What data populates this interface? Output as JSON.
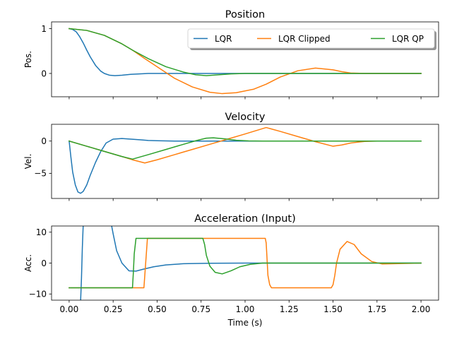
{
  "chart_data": [
    {
      "type": "line",
      "title": "Position",
      "ylabel": "Pos.",
      "xlabel": "",
      "xlim": [
        -0.1,
        2.1
      ],
      "ylim": [
        -0.52,
        1.15
      ],
      "yticks": [
        0,
        1
      ],
      "xticks": [
        0.0,
        0.25,
        0.5,
        0.75,
        1.0,
        1.25,
        1.5,
        1.75,
        2.0
      ],
      "show_xtick_labels": false,
      "grid": false,
      "legend": {
        "placement": "top-right",
        "ncol": 3,
        "entries": [
          "LQR",
          "LQR Clipped",
          "LQR QP"
        ]
      },
      "series": [
        {
          "name": "LQR",
          "color": "#1f77b4",
          "x": [
            0,
            0.02,
            0.04,
            0.06,
            0.08,
            0.1,
            0.12,
            0.15,
            0.18,
            0.2,
            0.23,
            0.26,
            0.3,
            0.35,
            0.4,
            0.45,
            0.5,
            0.6,
            0.8,
            1.0,
            1.5,
            2.0
          ],
          "y": [
            1.0,
            0.98,
            0.93,
            0.82,
            0.68,
            0.52,
            0.37,
            0.18,
            0.05,
            0.0,
            -0.04,
            -0.05,
            -0.04,
            -0.02,
            -0.01,
            0.0,
            0.0,
            0.0,
            0.0,
            0.0,
            0.0,
            0.0
          ]
        },
        {
          "name": "LQR Clipped",
          "color": "#ff7f0e",
          "x": [
            0,
            0.1,
            0.2,
            0.3,
            0.36,
            0.43,
            0.5,
            0.6,
            0.7,
            0.8,
            0.87,
            0.95,
            1.05,
            1.12,
            1.2,
            1.3,
            1.4,
            1.5,
            1.55,
            1.6,
            1.68,
            1.75,
            2.0
          ],
          "y": [
            1.0,
            0.96,
            0.85,
            0.66,
            0.52,
            0.33,
            0.15,
            -0.11,
            -0.3,
            -0.42,
            -0.45,
            -0.43,
            -0.35,
            -0.24,
            -0.08,
            0.06,
            0.12,
            0.08,
            0.04,
            0.01,
            0.0,
            0.0,
            0.0
          ]
        },
        {
          "name": "LQR QP",
          "color": "#2ca02c",
          "x": [
            0,
            0.1,
            0.2,
            0.3,
            0.36,
            0.45,
            0.55,
            0.65,
            0.72,
            0.78,
            0.85,
            0.92,
            1.0,
            1.1,
            1.3,
            1.5,
            2.0
          ],
          "y": [
            1.0,
            0.96,
            0.85,
            0.66,
            0.52,
            0.33,
            0.15,
            0.03,
            -0.03,
            -0.05,
            -0.03,
            -0.01,
            0.0,
            0.0,
            0.0,
            0.0,
            0.0
          ]
        }
      ]
    },
    {
      "type": "line",
      "title": "Velocity",
      "ylabel": "Vel.",
      "xlabel": "",
      "xlim": [
        -0.1,
        2.1
      ],
      "ylim": [
        -8.9,
        2.6
      ],
      "yticks": [
        -5,
        0
      ],
      "xticks": [
        0.0,
        0.25,
        0.5,
        0.75,
        1.0,
        1.25,
        1.5,
        1.75,
        2.0
      ],
      "show_xtick_labels": false,
      "grid": false,
      "series": [
        {
          "name": "LQR",
          "color": "#1f77b4",
          "x": [
            0,
            0.01,
            0.02,
            0.035,
            0.05,
            0.065,
            0.08,
            0.1,
            0.12,
            0.15,
            0.18,
            0.21,
            0.25,
            0.3,
            0.35,
            0.4,
            0.45,
            0.5,
            0.6,
            0.8,
            1.0,
            1.5,
            2.0
          ],
          "y": [
            0,
            -2.5,
            -4.8,
            -6.8,
            -7.9,
            -8.1,
            -7.8,
            -6.8,
            -5.3,
            -3.3,
            -1.6,
            -0.3,
            0.3,
            0.4,
            0.3,
            0.2,
            0.1,
            0.05,
            0,
            0,
            0,
            0,
            0
          ]
        },
        {
          "name": "LQR Clipped",
          "color": "#ff7f0e",
          "x": [
            0,
            0.1,
            0.2,
            0.3,
            0.36,
            0.43,
            0.5,
            0.6,
            0.7,
            0.8,
            0.9,
            1.0,
            1.12,
            1.2,
            1.3,
            1.4,
            1.5,
            1.55,
            1.6,
            1.68,
            1.75,
            2.0
          ],
          "y": [
            0,
            -0.8,
            -1.6,
            -2.4,
            -2.9,
            -3.4,
            -2.9,
            -2.1,
            -1.3,
            -0.5,
            0.3,
            1.1,
            2.1,
            1.5,
            0.7,
            -0.1,
            -0.8,
            -0.6,
            -0.3,
            -0.05,
            0,
            0
          ]
        },
        {
          "name": "LQR QP",
          "color": "#2ca02c",
          "x": [
            0,
            0.1,
            0.2,
            0.3,
            0.36,
            0.45,
            0.55,
            0.65,
            0.72,
            0.78,
            0.82,
            0.88,
            0.95,
            1.02,
            1.1,
            1.2,
            1.5,
            2.0
          ],
          "y": [
            0,
            -0.8,
            -1.6,
            -2.4,
            -2.8,
            -2.1,
            -1.3,
            -0.5,
            0.05,
            0.45,
            0.5,
            0.35,
            0.12,
            0.02,
            0,
            0,
            0,
            0
          ]
        }
      ]
    },
    {
      "type": "line",
      "title": "Acceleration (Input)",
      "ylabel": "Acc.",
      "xlabel": "Time (s)",
      "xlim": [
        -0.1,
        2.1
      ],
      "ylim": [
        -12,
        12
      ],
      "yticks": [
        -10,
        0,
        10
      ],
      "xticks": [
        0.0,
        0.25,
        0.5,
        0.75,
        1.0,
        1.25,
        1.5,
        1.75,
        2.0
      ],
      "xtick_labels": [
        "0.00",
        "0.25",
        "0.50",
        "0.75",
        "1.00",
        "1.25",
        "1.50",
        "1.75",
        "2.00"
      ],
      "show_xtick_labels": true,
      "grid": false,
      "series": [
        {
          "name": "LQR",
          "color": "#1f77b4",
          "x": [
            0.065,
            0.07,
            0.075,
            0.08,
            0.24,
            0.25,
            0.27,
            0.3,
            0.34,
            0.38,
            0.42,
            0.48,
            0.55,
            0.65,
            0.8,
            1.0,
            1.5,
            2.0
          ],
          "y": [
            -12.5,
            -5,
            5,
            12.5,
            12.5,
            9.5,
            4,
            0,
            -2.5,
            -2.6,
            -2.0,
            -1.2,
            -0.6,
            -0.2,
            -0.05,
            0,
            0,
            0
          ]
        },
        {
          "name": "LQR Clipped",
          "color": "#ff7f0e",
          "x": [
            0,
            0.425,
            0.435,
            0.445,
            1.115,
            1.12,
            1.13,
            1.14,
            1.15,
            1.49,
            1.5,
            1.51,
            1.52,
            1.54,
            1.58,
            1.62,
            1.66,
            1.72,
            1.78,
            1.85,
            2.0
          ],
          "y": [
            -8,
            -8,
            0,
            8,
            8,
            6.5,
            -4,
            -7,
            -8,
            -8,
            -7,
            -4,
            0,
            4.5,
            7,
            6,
            3,
            0.5,
            -0.3,
            -0.2,
            0
          ]
        },
        {
          "name": "LQR QP",
          "color": "#2ca02c",
          "x": [
            0,
            0.36,
            0.365,
            0.37,
            0.38,
            0.76,
            0.77,
            0.78,
            0.8,
            0.83,
            0.87,
            0.92,
            0.97,
            1.03,
            1.1,
            1.2,
            1.5,
            2.0
          ],
          "y": [
            -8,
            -8,
            -3,
            3,
            8,
            8,
            6,
            2.5,
            -1,
            -3,
            -3.5,
            -2.5,
            -1.2,
            -0.4,
            0,
            0,
            0,
            0
          ]
        }
      ]
    }
  ]
}
